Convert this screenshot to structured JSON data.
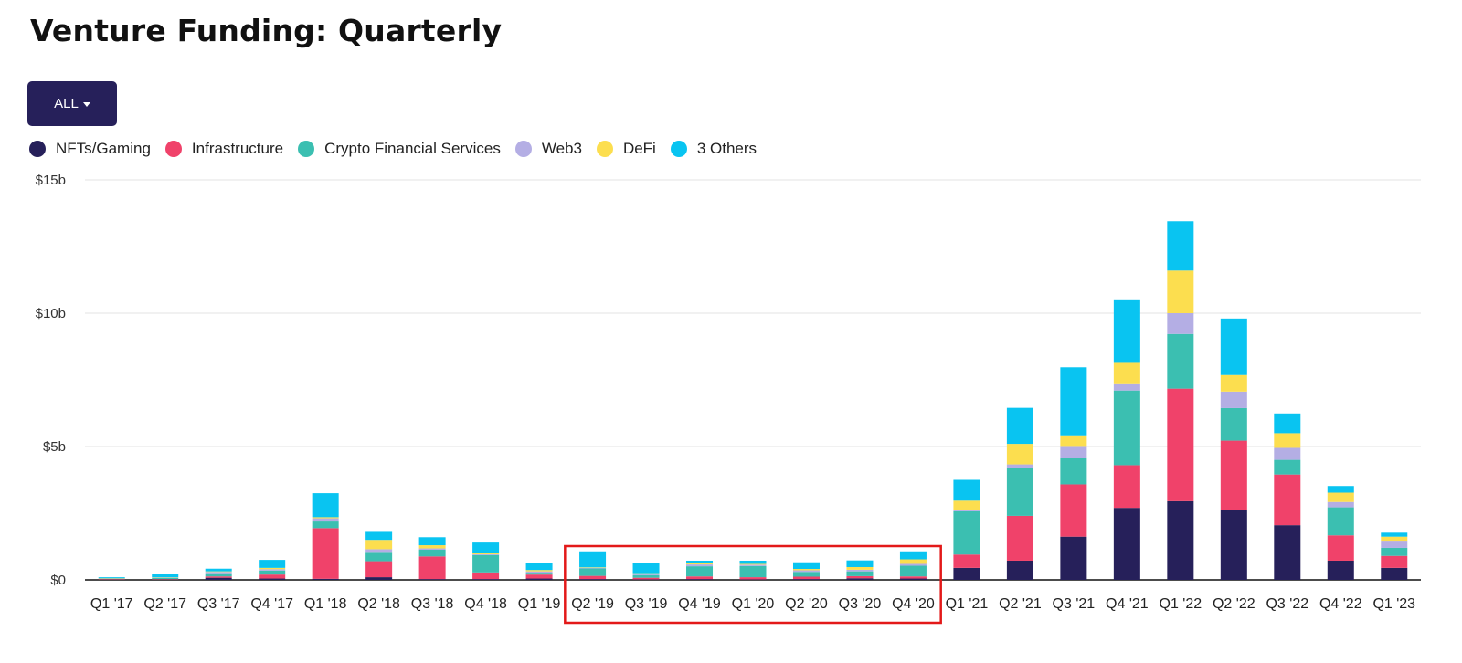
{
  "page": {
    "title": "Venture Funding: Quarterly",
    "filter_label": "ALL"
  },
  "legend": [
    {
      "name": "NFTs/Gaming",
      "color": "#26205a"
    },
    {
      "name": "Infrastructure",
      "color": "#f0426a"
    },
    {
      "name": "Crypto Financial Services",
      "color": "#3bbfb1"
    },
    {
      "name": "Web3",
      "color": "#b4aee4"
    },
    {
      "name": "DeFi",
      "color": "#fcde4f"
    },
    {
      "name": "3 Others",
      "color": "#09c4f1"
    }
  ],
  "chart_data": {
    "type": "bar",
    "stacked": true,
    "title": "Venture Funding: Quarterly",
    "xlabel": "",
    "ylabel": "",
    "ylim": [
      0,
      15
    ],
    "yticks": [
      0,
      5,
      10,
      15
    ],
    "ytick_labels": [
      "$0",
      "$5b",
      "$10b",
      "$15b"
    ],
    "grid": true,
    "units": "$ billions",
    "categories": [
      "Q1 '17",
      "Q2 '17",
      "Q3 '17",
      "Q4 '17",
      "Q1 '18",
      "Q2 '18",
      "Q3 '18",
      "Q4 '18",
      "Q1 '19",
      "Q2 '19",
      "Q3 '19",
      "Q4 '19",
      "Q1 '20",
      "Q2 '20",
      "Q3 '20",
      "Q4 '20",
      "Q1 '21",
      "Q2 '21",
      "Q3 '21",
      "Q4 '21",
      "Q1 '22",
      "Q2 '22",
      "Q3 '22",
      "Q4 '22",
      "Q1 '23"
    ],
    "series": [
      {
        "name": "NFTs/Gaming",
        "color": "#26205a",
        "values": [
          0.01,
          0.01,
          0.08,
          0.05,
          0.04,
          0.1,
          0.03,
          0.03,
          0.05,
          0.03,
          0.02,
          0.03,
          0.02,
          0.03,
          0.06,
          0.05,
          0.45,
          0.72,
          1.62,
          2.7,
          2.95,
          2.62,
          2.05,
          0.72,
          0.45
        ]
      },
      {
        "name": "Infrastructure",
        "color": "#f0426a",
        "values": [
          0.02,
          0.02,
          0.05,
          0.15,
          1.9,
          0.6,
          0.85,
          0.25,
          0.15,
          0.12,
          0.06,
          0.1,
          0.08,
          0.09,
          0.08,
          0.08,
          0.5,
          1.68,
          1.96,
          1.6,
          4.22,
          2.6,
          1.9,
          0.95,
          0.45
        ]
      },
      {
        "name": "Crypto Financial Services",
        "color": "#3bbfb1",
        "values": [
          0.02,
          0.05,
          0.12,
          0.15,
          0.25,
          0.35,
          0.25,
          0.65,
          0.07,
          0.28,
          0.1,
          0.38,
          0.42,
          0.18,
          0.18,
          0.4,
          1.62,
          1.8,
          0.98,
          2.8,
          2.05,
          1.22,
          0.55,
          1.05,
          0.3
        ]
      },
      {
        "name": "Web3",
        "color": "#b4aee4",
        "values": [
          0.01,
          0.01,
          0.05,
          0.05,
          0.12,
          0.1,
          0.05,
          0.03,
          0.05,
          0.02,
          0.04,
          0.07,
          0.05,
          0.06,
          0.06,
          0.07,
          0.05,
          0.13,
          0.46,
          0.27,
          0.78,
          0.62,
          0.45,
          0.2,
          0.27
        ]
      },
      {
        "name": "DeFi",
        "color": "#fcde4f",
        "values": [
          0.01,
          0.01,
          0.02,
          0.05,
          0.04,
          0.35,
          0.12,
          0.04,
          0.05,
          0.02,
          0.03,
          0.06,
          0.03,
          0.05,
          0.1,
          0.17,
          0.35,
          0.77,
          0.4,
          0.8,
          1.6,
          0.62,
          0.55,
          0.35,
          0.15
        ]
      },
      {
        "name": "3 Others",
        "color": "#09c4f1",
        "values": [
          0.03,
          0.12,
          0.1,
          0.3,
          0.9,
          0.3,
          0.3,
          0.4,
          0.28,
          0.6,
          0.4,
          0.08,
          0.12,
          0.25,
          0.25,
          0.3,
          0.78,
          1.35,
          2.55,
          2.35,
          1.85,
          2.12,
          0.74,
          0.25,
          0.15
        ]
      }
    ],
    "annotations": [
      {
        "type": "highlight-box",
        "from_category": "Q2 '19",
        "to_category": "Q4 '20",
        "color": "#e31919"
      }
    ]
  }
}
